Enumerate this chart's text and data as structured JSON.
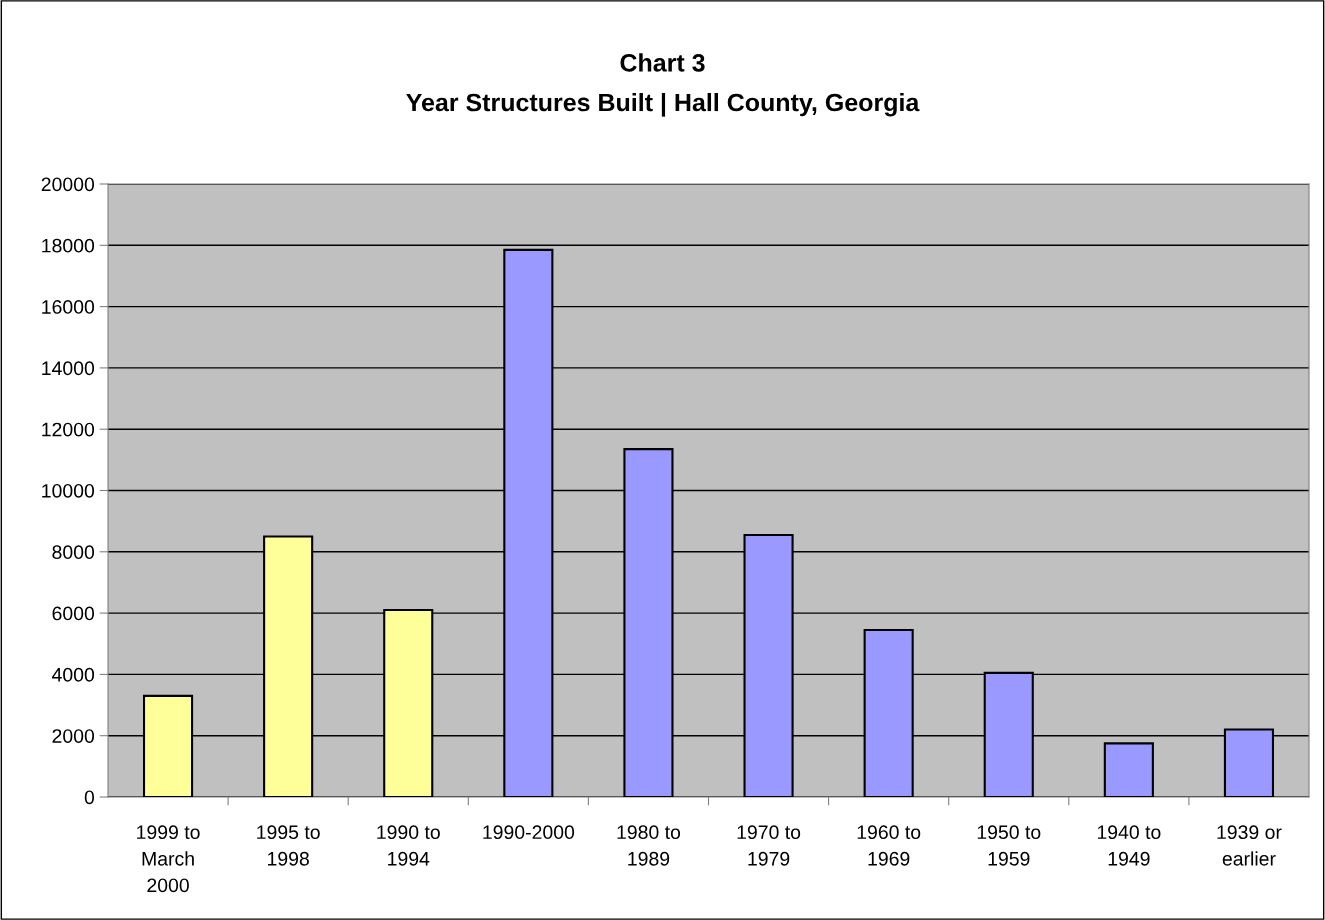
{
  "chart_data": {
    "type": "bar",
    "title": "Chart 3\nYear Structures Built | Hall County, Georgia",
    "categories": [
      "1999 to\nMarch\n2000",
      "1995 to\n1998",
      "1990 to\n1994",
      "1990-2000",
      "1980 to\n1989",
      "1970 to\n1979",
      "1960 to\n1969",
      "1950 to\n1959",
      "1940 to\n1949",
      "1939 or\nearlier"
    ],
    "values": [
      3300,
      8500,
      6100,
      17850,
      11350,
      8550,
      5450,
      4050,
      1750,
      2200
    ],
    "colors": [
      "#ffff99",
      "#ffff99",
      "#ffff99",
      "#9999ff",
      "#9999ff",
      "#9999ff",
      "#9999ff",
      "#9999ff",
      "#9999ff",
      "#9999ff"
    ],
    "ylim": [
      0,
      20000
    ],
    "yticks": [
      0,
      2000,
      4000,
      6000,
      8000,
      10000,
      12000,
      14000,
      16000,
      18000,
      20000
    ],
    "grid": "y",
    "legend": false
  }
}
